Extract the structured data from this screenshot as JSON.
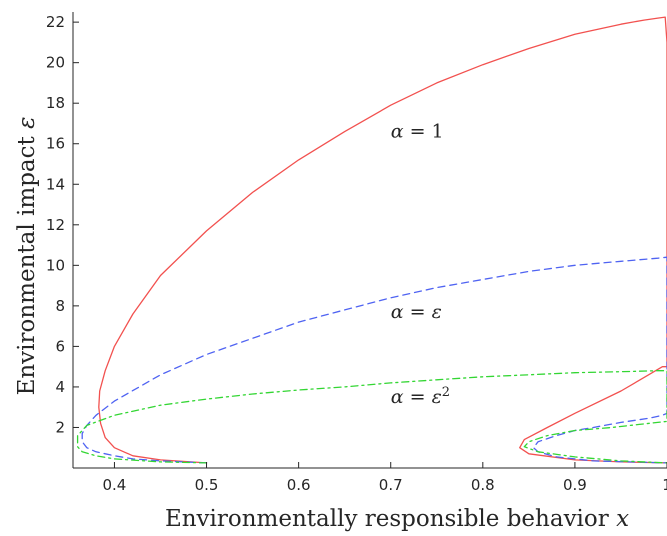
{
  "chart_data": {
    "type": "line",
    "title": "",
    "xlabel": "Environmentally responsible behavior x",
    "ylabel": "Environmental impact ε",
    "xlim": [
      0.355,
      1.0
    ],
    "ylim": [
      0.0,
      22.5
    ],
    "xticks": [
      "0.4",
      "0.5",
      "0.6",
      "0.7",
      "0.8",
      "0.9",
      "1"
    ],
    "xtick_values": [
      0.4,
      0.5,
      0.6,
      0.7,
      0.8,
      0.9,
      1.0
    ],
    "yticks": [
      "2",
      "4",
      "6",
      "8",
      "10",
      "12",
      "14",
      "16",
      "18",
      "20",
      "22"
    ],
    "ytick_values": [
      2,
      4,
      6,
      8,
      10,
      12,
      14,
      16,
      18,
      20,
      22
    ],
    "grid": false,
    "legend": "none",
    "annotations": [
      {
        "x": 0.7,
        "y": 16.3,
        "math": "α = 1",
        "parts": [
          {
            "t": "α",
            "it": true
          },
          {
            "t": " = 1",
            "it": false
          }
        ]
      },
      {
        "x": 0.7,
        "y": 7.4,
        "math": "α = ε",
        "parts": [
          {
            "t": "α",
            "it": true
          },
          {
            "t": " = ",
            "it": false
          },
          {
            "t": "ε",
            "it": true
          }
        ]
      },
      {
        "x": 0.7,
        "y": 3.2,
        "math": "α = ε²",
        "parts": [
          {
            "t": "α",
            "it": true
          },
          {
            "t": " = ",
            "it": false
          },
          {
            "t": "ε",
            "it": true
          },
          {
            "t": "2",
            "sup": true
          }
        ]
      }
    ],
    "series": [
      {
        "label_ref": "α = 1",
        "color": "#f2514f",
        "dash": "solid",
        "x": [
          0.5,
          0.45,
          0.42,
          0.4,
          0.39,
          0.385,
          0.383,
          0.384,
          0.39,
          0.4,
          0.42,
          0.45,
          0.5,
          0.55,
          0.6,
          0.65,
          0.7,
          0.75,
          0.8,
          0.85,
          0.9,
          0.95,
          0.975,
          0.99,
          0.998,
          1.0,
          1.0,
          1.0,
          0.995,
          0.98,
          0.95,
          0.9,
          0.87,
          0.845,
          0.84,
          0.85,
          0.9,
          0.95,
          1.0
        ],
        "y": [
          0.25,
          0.4,
          0.6,
          1.0,
          1.5,
          2.2,
          3.0,
          3.8,
          4.8,
          6.0,
          7.6,
          9.5,
          11.7,
          13.6,
          15.2,
          16.6,
          17.9,
          19.0,
          19.9,
          20.7,
          21.4,
          21.9,
          22.1,
          22.2,
          22.25,
          21.0,
          10.0,
          5.0,
          5.0,
          4.6,
          3.8,
          2.7,
          2.0,
          1.4,
          1.0,
          0.7,
          0.4,
          0.3,
          0.25
        ]
      },
      {
        "label_ref": "α = ε",
        "color": "#4f63f2",
        "dash": "dashed",
        "x": [
          0.5,
          0.45,
          0.42,
          0.4,
          0.38,
          0.37,
          0.365,
          0.365,
          0.37,
          0.38,
          0.4,
          0.45,
          0.5,
          0.55,
          0.6,
          0.65,
          0.7,
          0.75,
          0.8,
          0.85,
          0.9,
          0.95,
          0.99,
          1.0,
          1.0,
          0.995,
          0.98,
          0.95,
          0.92,
          0.9,
          0.88,
          0.86,
          0.855,
          0.86,
          0.88,
          0.92,
          0.96,
          1.0
        ],
        "y": [
          0.25,
          0.35,
          0.45,
          0.6,
          0.8,
          1.0,
          1.3,
          1.7,
          2.1,
          2.6,
          3.3,
          4.6,
          5.6,
          6.4,
          7.2,
          7.8,
          8.4,
          8.9,
          9.3,
          9.7,
          10.0,
          10.2,
          10.35,
          10.4,
          2.7,
          2.6,
          2.45,
          2.25,
          2.0,
          1.85,
          1.6,
          1.3,
          1.0,
          0.8,
          0.55,
          0.35,
          0.3,
          0.25
        ]
      },
      {
        "label_ref": "α = ε²",
        "color": "#33d633",
        "dash": "dashdot",
        "x": [
          0.5,
          0.45,
          0.4,
          0.38,
          0.365,
          0.36,
          0.36,
          0.37,
          0.4,
          0.45,
          0.5,
          0.55,
          0.6,
          0.65,
          0.7,
          0.75,
          0.8,
          0.85,
          0.9,
          0.95,
          0.99,
          1.0,
          1.0,
          0.99,
          0.97,
          0.94,
          0.9,
          0.87,
          0.85,
          0.845,
          0.86,
          0.9,
          0.95,
          1.0
        ],
        "y": [
          0.25,
          0.3,
          0.45,
          0.6,
          0.8,
          1.05,
          1.6,
          2.1,
          2.6,
          3.1,
          3.4,
          3.65,
          3.85,
          4.0,
          4.2,
          4.35,
          4.5,
          4.6,
          4.7,
          4.75,
          4.8,
          4.8,
          2.3,
          2.25,
          2.15,
          2.0,
          1.85,
          1.6,
          1.3,
          1.05,
          0.8,
          0.55,
          0.35,
          0.25
        ]
      }
    ]
  }
}
